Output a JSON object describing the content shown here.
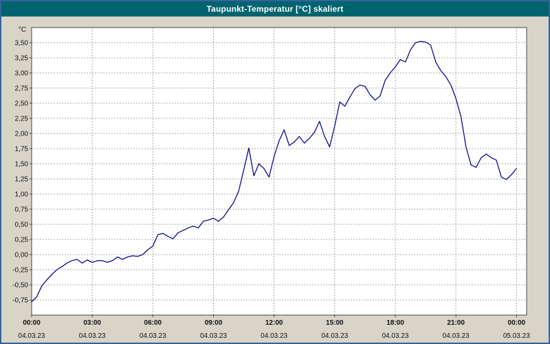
{
  "window": {
    "title": "Taupunkt-Temperatur [°C] skaliert",
    "title_bar_color": "#00646e",
    "background_color": "#d8d4c8",
    "border_color": "#33639c"
  },
  "chart_data": {
    "type": "line",
    "title": "Taupunkt-Temperatur [°C] skaliert",
    "xlabel": "",
    "ylabel": "°C",
    "grid": true,
    "grid_color": "#a6a6a6",
    "line_color": "#0a0a8c",
    "frame_color": "#444444",
    "label_color": "#111111",
    "ylim": [
      -1.0,
      3.75
    ],
    "xlim_hours": [
      0,
      24.5
    ],
    "yticks": [
      3.5,
      3.25,
      3.0,
      2.75,
      2.5,
      2.25,
      2.0,
      1.75,
      1.5,
      1.25,
      1.0,
      0.75,
      0.5,
      0.25,
      0.0,
      -0.25,
      -0.5,
      -0.75
    ],
    "ytick_labels": [
      "3,50",
      "3,25",
      "3,00",
      "2,75",
      "2,50",
      "2,25",
      "2,00",
      "1,75",
      "1,50",
      "1,25",
      "1,00",
      "0,75",
      "0,50",
      "0,25",
      "0,00",
      "-0,25",
      "-0,50",
      "-0,75"
    ],
    "xticks_hours": [
      0,
      3,
      6,
      9,
      12,
      15,
      18,
      21,
      24
    ],
    "xtick_labels": [
      "00:00",
      "03:00",
      "06:00",
      "09:00",
      "12:00",
      "15:00",
      "18:00",
      "21:00",
      "00:00"
    ],
    "xtick_dates": [
      "04.03.23",
      "04.03.23",
      "04.03.23",
      "04.03.23",
      "04.03.23",
      "04.03.23",
      "04.03.23",
      "04.03.23",
      "05.03.23"
    ],
    "series": [
      {
        "name": "Taupunkt-Temperatur",
        "x": [
          0.0,
          0.25,
          0.5,
          0.75,
          1.0,
          1.25,
          1.5,
          1.75,
          2.0,
          2.25,
          2.5,
          2.75,
          3.0,
          3.25,
          3.5,
          3.75,
          4.0,
          4.25,
          4.5,
          4.75,
          5.0,
          5.25,
          5.5,
          5.75,
          6.0,
          6.25,
          6.5,
          6.75,
          7.0,
          7.25,
          7.5,
          7.75,
          8.0,
          8.25,
          8.5,
          8.75,
          9.0,
          9.25,
          9.5,
          9.75,
          10.0,
          10.25,
          10.5,
          10.75,
          11.0,
          11.25,
          11.5,
          11.75,
          12.0,
          12.25,
          12.5,
          12.75,
          13.0,
          13.25,
          13.5,
          13.75,
          14.0,
          14.25,
          14.5,
          14.75,
          15.0,
          15.25,
          15.5,
          15.75,
          16.0,
          16.25,
          16.5,
          16.75,
          17.0,
          17.25,
          17.5,
          17.75,
          18.0,
          18.25,
          18.5,
          18.75,
          19.0,
          19.25,
          19.5,
          19.75,
          20.0,
          20.25,
          20.5,
          20.75,
          21.0,
          21.25,
          21.5,
          21.75,
          22.0,
          22.25,
          22.5,
          22.75,
          23.0,
          23.25,
          23.5,
          23.75,
          24.0
        ],
        "y": [
          -0.78,
          -0.7,
          -0.52,
          -0.42,
          -0.33,
          -0.25,
          -0.2,
          -0.14,
          -0.1,
          -0.08,
          -0.14,
          -0.09,
          -0.13,
          -0.1,
          -0.1,
          -0.13,
          -0.1,
          -0.04,
          -0.08,
          -0.04,
          -0.02,
          -0.03,
          0.0,
          0.08,
          0.14,
          0.33,
          0.35,
          0.3,
          0.26,
          0.36,
          0.4,
          0.44,
          0.47,
          0.44,
          0.55,
          0.57,
          0.6,
          0.55,
          0.62,
          0.74,
          0.86,
          1.05,
          1.4,
          1.76,
          1.3,
          1.5,
          1.42,
          1.28,
          1.62,
          1.88,
          2.06,
          1.8,
          1.86,
          1.95,
          1.84,
          1.92,
          2.02,
          2.2,
          1.95,
          1.78,
          2.12,
          2.52,
          2.45,
          2.6,
          2.74,
          2.8,
          2.78,
          2.64,
          2.55,
          2.62,
          2.88,
          3.0,
          3.1,
          3.22,
          3.18,
          3.38,
          3.5,
          3.52,
          3.51,
          3.46,
          3.18,
          3.04,
          2.94,
          2.8,
          2.58,
          2.28,
          1.78,
          1.48,
          1.44,
          1.6,
          1.66,
          1.6,
          1.56,
          1.28,
          1.24,
          1.32,
          1.42
        ]
      }
    ]
  }
}
